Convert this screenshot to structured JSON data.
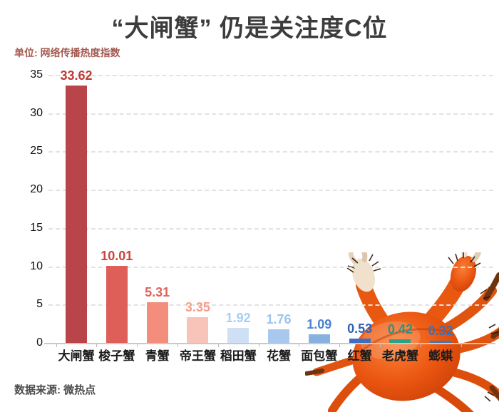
{
  "chart_data": {
    "type": "bar",
    "title": "“大闸蟹” 仍是关注度C位",
    "unit_label": "单位: 网络传播热度指数",
    "source": "数据来源: 微热点",
    "categories": [
      "大闸蟹",
      "梭子蟹",
      "青蟹",
      "帝王蟹",
      "稻田蟹",
      "花蟹",
      "面包蟹",
      "红蟹",
      "老虎蟹",
      "蟛蜞"
    ],
    "values": [
      33.62,
      10.01,
      5.31,
      3.35,
      1.92,
      1.76,
      1.09,
      0.53,
      0.42,
      0.32
    ],
    "bar_colors": [
      "#b9444a",
      "#dd5f58",
      "#f38e7d",
      "#f8c4b9",
      "#cfe0f5",
      "#a9c8ee",
      "#89b1e0",
      "#3c6fc2",
      "#2ba189",
      "#4377ad"
    ],
    "value_label_colors": [
      "#c23a34",
      "#c8443e",
      "#e0625c",
      "#f79c8a",
      "#a9cdf4",
      "#9cc3ef",
      "#4d82cf",
      "#2d62b8",
      "#2a9480",
      "#3374b5"
    ],
    "yticks": [
      0,
      5,
      10,
      15,
      20,
      25,
      30,
      35
    ],
    "ylim": [
      0,
      35
    ],
    "grid": "horizontal-dashed",
    "legend": "none",
    "title_color": "#3c3c3c",
    "unit_color": "#a3594f",
    "source_color": "#4c4c4c"
  },
  "decoration": {
    "crab_image": "red-hairy-crab-photo",
    "crab_colors": {
      "body": "#e85510",
      "shadow": "#c03a06",
      "highlight": "#fa8038",
      "pale_claw": "#f0e0cc",
      "fuzz": "#2a1407"
    }
  }
}
